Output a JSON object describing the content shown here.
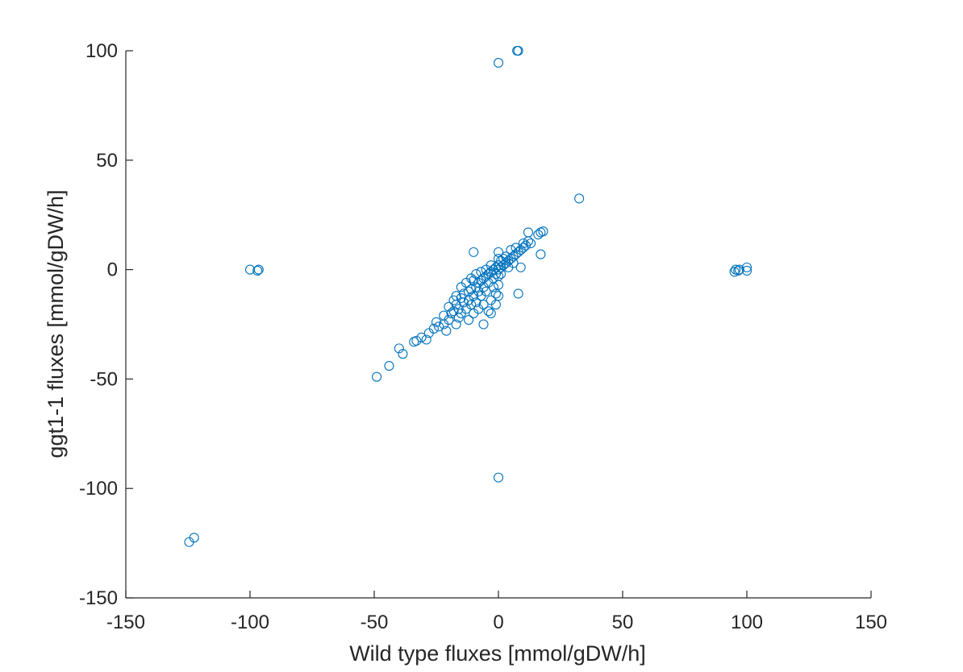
{
  "chart_data": {
    "type": "scatter",
    "title": "",
    "xlabel": "Wild type fluxes [mmol/gDW/h]",
    "ylabel": "ggt1-1 fluxes [mmol/gDW/h]",
    "xlim": [
      -150,
      150
    ],
    "ylim": [
      -150,
      100
    ],
    "xticks": [
      "-150",
      "-100",
      "-50",
      "0",
      "50",
      "100",
      "150"
    ],
    "yticks": [
      "100",
      "50",
      "0",
      "-50",
      "-100",
      "-150"
    ],
    "grid": false,
    "marker_color": "#0072BD",
    "series": [
      {
        "points": [
          [
            -124.5,
            -124.5
          ],
          [
            -122.5,
            -122.5
          ],
          [
            -100,
            0
          ],
          [
            -97,
            -0.5
          ],
          [
            -96.5,
            0
          ],
          [
            95,
            -1
          ],
          [
            95.5,
            0
          ],
          [
            96.5,
            -0.5
          ],
          [
            97,
            0
          ],
          [
            100,
            1
          ],
          [
            100,
            -0.5
          ],
          [
            0,
            94.5
          ],
          [
            7.5,
            100
          ],
          [
            8,
            100
          ],
          [
            0,
            -95
          ],
          [
            32.5,
            32.5
          ],
          [
            -49,
            -49
          ],
          [
            -44,
            -44
          ],
          [
            -40,
            -36
          ],
          [
            -38.5,
            -38.5
          ],
          [
            -34,
            -33
          ],
          [
            -33,
            -32.5
          ],
          [
            -31,
            -31
          ],
          [
            -29,
            -32
          ],
          [
            -28,
            -29
          ],
          [
            -26,
            -27
          ],
          [
            -25,
            -24
          ],
          [
            -24,
            -26
          ],
          [
            -22,
            -25
          ],
          [
            -22,
            -21
          ],
          [
            -21,
            -28
          ],
          [
            -20,
            -23
          ],
          [
            -20,
            -17
          ],
          [
            -19,
            -20
          ],
          [
            -18,
            -19
          ],
          [
            -18,
            -14
          ],
          [
            -17,
            -16
          ],
          [
            -17,
            -12
          ],
          [
            -17,
            -25
          ],
          [
            -16,
            -18
          ],
          [
            -16,
            -22
          ],
          [
            -15,
            -13
          ],
          [
            -15,
            -8
          ],
          [
            -15,
            -20
          ],
          [
            -14,
            -15
          ],
          [
            -14,
            -11
          ],
          [
            -13,
            -18
          ],
          [
            -13,
            -6
          ],
          [
            -12,
            -10
          ],
          [
            -12,
            -14
          ],
          [
            -12,
            -23
          ],
          [
            -11,
            -9
          ],
          [
            -11,
            -4
          ],
          [
            -11,
            -16
          ],
          [
            -10,
            -12
          ],
          [
            -10,
            -5
          ],
          [
            -10,
            -20
          ],
          [
            -10,
            8
          ],
          [
            -9,
            -8
          ],
          [
            -9,
            -2
          ],
          [
            -9,
            -15
          ],
          [
            -8,
            -10
          ],
          [
            -8,
            -6
          ],
          [
            -8,
            -18
          ],
          [
            -7,
            -5
          ],
          [
            -7,
            -1
          ],
          [
            -7,
            -12
          ],
          [
            -6,
            -4
          ],
          [
            -6,
            -8
          ],
          [
            -6,
            -25
          ],
          [
            -6,
            -16
          ],
          [
            -5,
            -3
          ],
          [
            -5,
            0
          ],
          [
            -5,
            -10
          ],
          [
            -4,
            -2
          ],
          [
            -4,
            -6
          ],
          [
            -4,
            -19
          ],
          [
            -3,
            -1
          ],
          [
            -3,
            2
          ],
          [
            -3,
            -14
          ],
          [
            -3,
            -20
          ],
          [
            -2,
            0
          ],
          [
            -2,
            -4
          ],
          [
            -2,
            -8
          ],
          [
            -1,
            1
          ],
          [
            -1,
            -2
          ],
          [
            -1,
            -11
          ],
          [
            -1,
            -16
          ],
          [
            0,
            0
          ],
          [
            0,
            2
          ],
          [
            0,
            5
          ],
          [
            0,
            8
          ],
          [
            0,
            -3
          ],
          [
            0,
            -7
          ],
          [
            0,
            -12
          ],
          [
            1,
            1
          ],
          [
            1,
            4
          ],
          [
            1,
            -2
          ],
          [
            2,
            2
          ],
          [
            2,
            5
          ],
          [
            3,
            3
          ],
          [
            3,
            6
          ],
          [
            4,
            4
          ],
          [
            4,
            1
          ],
          [
            5,
            5
          ],
          [
            5,
            9
          ],
          [
            6,
            6
          ],
          [
            6,
            3
          ],
          [
            7,
            7
          ],
          [
            7,
            10
          ],
          [
            8,
            8
          ],
          [
            8,
            -11
          ],
          [
            9,
            9
          ],
          [
            9,
            1
          ],
          [
            10,
            10
          ],
          [
            10,
            12
          ],
          [
            11,
            11
          ],
          [
            12,
            13
          ],
          [
            12,
            17
          ],
          [
            13,
            12
          ],
          [
            16,
            16
          ],
          [
            17,
            7
          ],
          [
            17,
            17
          ],
          [
            18,
            17.5
          ]
        ]
      }
    ]
  }
}
